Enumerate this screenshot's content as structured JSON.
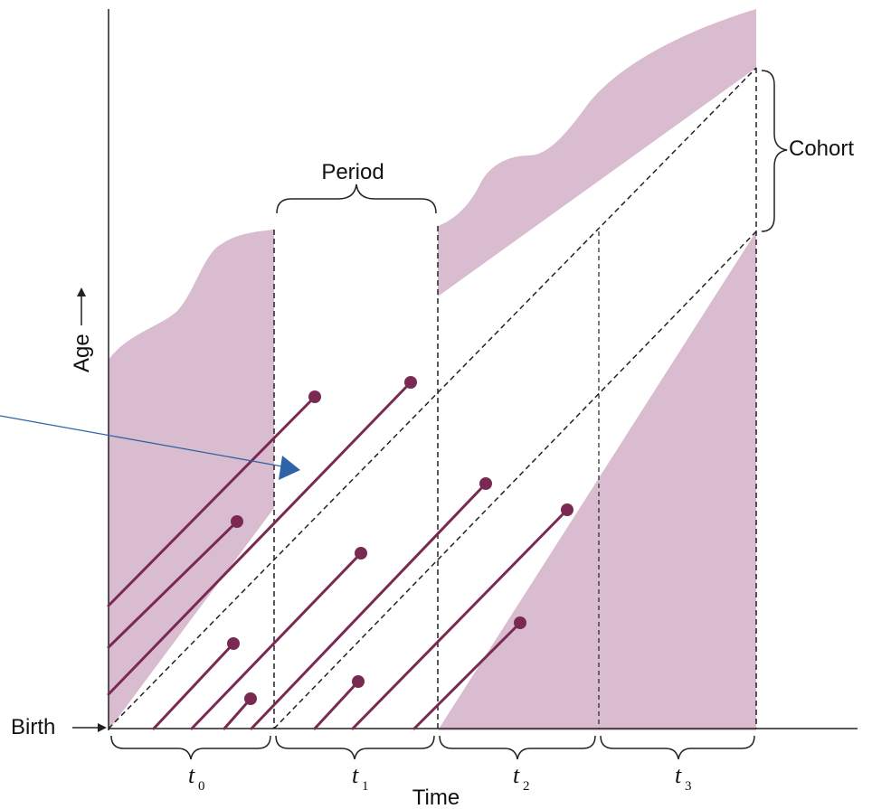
{
  "labels": {
    "age": "Age",
    "birth": "Birth",
    "time": "Time",
    "period": "Period",
    "cohort": "Cohort"
  },
  "time_intervals": [
    {
      "letter": "t",
      "subscript": "0"
    },
    {
      "letter": "t",
      "subscript": "1"
    },
    {
      "letter": "t",
      "subscript": "2"
    },
    {
      "letter": "t",
      "subscript": "3"
    }
  ],
  "colors": {
    "shade": "#d9bccf",
    "lifeline": "#7a2a52",
    "axis": "#222222",
    "dashed": "#222222",
    "pointer": "#2e63a8"
  }
}
